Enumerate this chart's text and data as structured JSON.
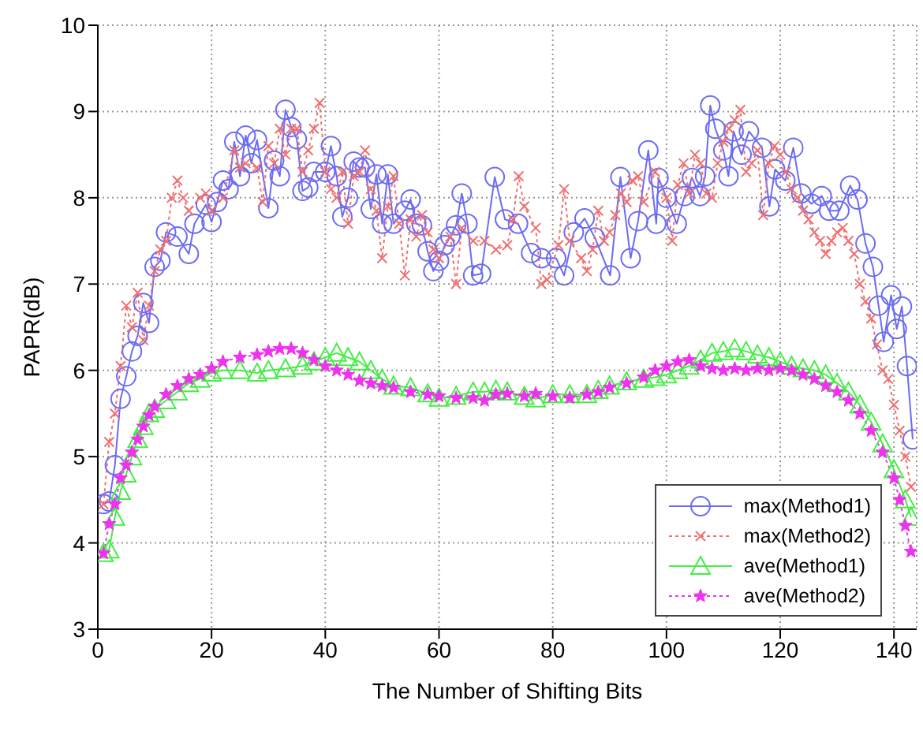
{
  "chart_data": {
    "type": "line",
    "xlabel": "The Number of Shifting Bits",
    "ylabel": "PAPR(dB)",
    "xlim": [
      0,
      144
    ],
    "xticks": [
      0,
      20,
      40,
      60,
      80,
      100,
      120,
      140
    ],
    "ylim": [
      3,
      10
    ],
    "yticks": [
      3,
      4,
      5,
      6,
      7,
      8,
      9,
      10
    ],
    "grid": true,
    "legend": "bottom right",
    "series": [
      {
        "name": "max(Method1)",
        "color": "#6b6bf5",
        "marker": "circle",
        "line_style": "solid",
        "x": [
          1,
          2,
          3,
          4,
          5,
          6,
          7,
          8,
          9,
          10,
          11,
          12,
          14,
          16,
          17,
          19,
          20,
          21,
          22,
          23,
          24,
          25,
          26,
          27,
          28,
          30,
          31,
          32,
          33,
          34,
          35,
          36,
          37,
          38,
          40,
          41,
          42,
          43,
          44,
          45,
          46,
          47,
          48,
          49,
          50,
          51,
          52,
          54,
          55,
          56,
          57,
          58,
          59,
          60,
          61,
          62,
          63,
          64,
          65,
          66,
          67.4,
          69.8,
          71.6,
          73.9,
          76.2,
          78,
          80.6,
          82,
          83.7,
          85.6,
          87.4,
          90.1,
          91.9,
          93.7,
          95,
          96.8,
          98.2,
          98.6,
          100,
          101.8,
          103.2,
          104.5,
          105.9,
          106.8,
          107.7,
          108.6,
          110,
          110.9,
          111.8,
          113.2,
          114.5,
          116.8,
          118.1,
          119.1,
          120.9,
          122.3,
          123.7,
          125.5,
          127.3,
          128.6,
          130.4,
          132.3,
          133.6,
          135,
          136.3,
          137.3,
          138.2,
          139.5,
          140.5,
          141.4,
          142.3,
          143.3
        ],
        "values": [
          4.45,
          4.48,
          4.9,
          5.67,
          5.93,
          6.22,
          6.4,
          6.78,
          6.55,
          7.2,
          7.27,
          7.6,
          7.55,
          7.35,
          7.7,
          7.92,
          7.72,
          7.95,
          8.2,
          8.1,
          8.65,
          8.25,
          8.72,
          8.4,
          8.67,
          7.88,
          8.43,
          8.25,
          9.02,
          8.82,
          8.68,
          8.08,
          8.12,
          8.3,
          8.3,
          8.6,
          8.25,
          7.78,
          8.0,
          8.42,
          8.35,
          8.35,
          7.87,
          8.27,
          7.7,
          8.27,
          7.7,
          7.85,
          7.98,
          7.7,
          7.68,
          7.38,
          7.15,
          7.27,
          7.45,
          7.55,
          7.68,
          8.05,
          7.7,
          7.1,
          7.12,
          8.24,
          7.75,
          7.7,
          7.36,
          7.3,
          7.3,
          7.1,
          7.6,
          7.76,
          7.54,
          7.1,
          8.24,
          7.3,
          7.73,
          8.55,
          7.7,
          8.23,
          8.0,
          7.7,
          8.02,
          8.23,
          8.02,
          8.25,
          9.07,
          8.8,
          8.55,
          8.25,
          8.77,
          8.5,
          8.77,
          8.58,
          7.9,
          8.33,
          8.2,
          8.58,
          8.05,
          7.93,
          8.02,
          7.85,
          7.85,
          8.14,
          7.98,
          7.47,
          7.2,
          6.75,
          6.33,
          6.87,
          6.48,
          6.74,
          6.05,
          5.2
        ]
      },
      {
        "name": "max(Method2)",
        "color": "#f07070",
        "marker": "cross",
        "line_style": "dotted",
        "x": [
          1,
          2,
          3,
          4,
          5,
          6,
          7,
          8,
          9,
          10,
          11,
          12,
          13,
          14,
          15,
          16,
          18,
          19,
          20,
          22,
          24,
          25,
          26,
          28,
          29,
          30,
          31,
          32,
          33,
          34,
          35,
          36,
          37,
          38,
          39,
          40,
          41,
          42,
          43,
          44,
          45,
          46,
          47,
          48,
          49,
          50,
          51,
          52,
          53,
          54,
          55,
          56,
          57,
          58,
          59,
          60,
          62,
          63,
          64,
          66,
          68,
          70,
          72,
          73,
          74,
          75,
          77,
          78,
          79,
          81,
          82,
          83,
          85,
          86,
          87,
          88,
          89,
          90,
          91,
          92,
          93,
          94,
          95,
          96,
          98,
          100,
          101,
          102,
          103,
          104,
          105,
          106,
          107,
          108,
          109,
          110,
          111,
          112,
          113,
          114,
          115,
          116,
          117,
          118,
          119,
          120,
          121,
          122,
          123,
          124,
          125,
          126,
          127,
          128,
          129,
          130,
          131,
          132,
          133,
          134,
          135,
          136,
          137,
          138,
          139,
          140,
          141,
          142,
          143
        ],
        "values": [
          4.45,
          5.17,
          5.5,
          6.05,
          6.75,
          6.5,
          6.9,
          6.35,
          6.75,
          7.15,
          7.4,
          7.5,
          8.0,
          8.2,
          8.0,
          7.85,
          8.0,
          8.05,
          7.85,
          8.0,
          8.55,
          8.35,
          8.4,
          8.35,
          7.95,
          8.6,
          8.4,
          8.8,
          8.5,
          8.8,
          8.8,
          8.3,
          8.55,
          8.8,
          9.1,
          8.3,
          8.1,
          8.0,
          8.3,
          7.7,
          8.25,
          8.3,
          8.55,
          8.1,
          7.85,
          7.3,
          7.9,
          8.25,
          7.7,
          7.1,
          7.75,
          7.55,
          7.8,
          7.6,
          7.4,
          7.3,
          7.55,
          7.0,
          7.65,
          7.5,
          7.5,
          7.4,
          7.45,
          7.75,
          8.25,
          7.9,
          7.65,
          7.0,
          7.05,
          7.45,
          8.1,
          7.5,
          7.3,
          7.15,
          7.4,
          7.85,
          7.5,
          7.6,
          7.8,
          8.05,
          7.95,
          8.2,
          8.25,
          7.95,
          8.3,
          8.0,
          7.5,
          8.15,
          8.4,
          8.05,
          8.5,
          8.4,
          8.05,
          8.0,
          8.4,
          8.65,
          8.8,
          8.9,
          9.02,
          8.3,
          8.4,
          8.55,
          7.8,
          8.4,
          8.6,
          8.5,
          8.3,
          8.1,
          8.0,
          7.85,
          7.75,
          7.6,
          7.5,
          7.35,
          7.5,
          7.6,
          7.65,
          7.5,
          7.35,
          7.0,
          6.8,
          6.6,
          6.3,
          6.0,
          5.9,
          5.6,
          5.3,
          5.0,
          4.65
        ]
      },
      {
        "name": "ave(Method1)",
        "color": "#44ee44",
        "marker": "triangle",
        "line_style": "solid",
        "x": [
          1,
          2,
          3,
          4,
          5,
          6,
          7,
          8,
          9,
          10,
          12,
          14,
          16,
          18,
          20,
          22,
          25,
          28,
          30,
          33,
          36,
          38,
          40,
          42,
          44,
          46,
          48,
          50,
          52,
          55,
          58,
          60,
          63,
          66,
          68,
          70,
          72,
          75,
          77,
          80,
          83,
          86,
          88,
          90,
          93,
          96,
          98,
          100,
          102,
          104,
          106,
          108,
          110,
          112,
          114,
          116,
          118,
          120,
          122,
          124,
          126,
          128,
          130,
          132,
          134,
          136,
          138,
          140,
          142,
          143
        ],
        "values": [
          3.88,
          3.92,
          4.3,
          4.6,
          4.8,
          5.0,
          5.2,
          5.35,
          5.5,
          5.55,
          5.65,
          5.75,
          5.85,
          5.9,
          5.97,
          6.0,
          6.0,
          5.97,
          6.0,
          6.02,
          6.05,
          6.1,
          6.15,
          6.2,
          6.15,
          6.1,
          6.0,
          5.9,
          5.82,
          5.8,
          5.73,
          5.68,
          5.7,
          5.75,
          5.75,
          5.77,
          5.75,
          5.7,
          5.67,
          5.72,
          5.72,
          5.72,
          5.77,
          5.82,
          5.87,
          5.9,
          5.92,
          5.95,
          6.0,
          6.05,
          6.12,
          6.2,
          6.22,
          6.25,
          6.22,
          6.18,
          6.15,
          6.1,
          6.05,
          6.02,
          6.0,
          5.95,
          5.85,
          5.75,
          5.6,
          5.4,
          5.15,
          4.85,
          4.5,
          4.3
        ]
      },
      {
        "name": "ave(Method2)",
        "color": "#ee33ee",
        "marker": "star",
        "line_style": "dotted",
        "x": [
          1,
          2,
          3,
          4,
          5,
          6,
          7,
          8,
          9,
          10,
          12,
          14,
          16,
          18,
          20,
          22,
          25,
          28,
          30,
          32,
          34,
          36,
          38,
          40,
          42,
          44,
          46,
          48,
          50,
          52,
          55,
          58,
          60,
          63,
          66,
          68,
          70,
          72,
          75,
          77,
          80,
          83,
          86,
          88,
          90,
          93,
          96,
          98,
          100,
          102,
          104,
          106,
          108,
          110,
          112,
          114,
          116,
          118,
          120,
          122,
          124,
          126,
          128,
          130,
          132,
          134,
          136,
          138,
          140,
          141,
          142,
          143
        ],
        "values": [
          3.88,
          4.22,
          4.45,
          4.75,
          4.9,
          5.05,
          5.2,
          5.35,
          5.48,
          5.58,
          5.72,
          5.82,
          5.9,
          5.95,
          6.02,
          6.1,
          6.15,
          6.18,
          6.22,
          6.25,
          6.25,
          6.2,
          6.12,
          6.05,
          6.0,
          5.95,
          5.88,
          5.85,
          5.82,
          5.8,
          5.75,
          5.72,
          5.7,
          5.68,
          5.68,
          5.65,
          5.72,
          5.73,
          5.7,
          5.73,
          5.7,
          5.68,
          5.72,
          5.75,
          5.8,
          5.85,
          5.92,
          6.0,
          6.05,
          6.1,
          6.12,
          6.05,
          6.02,
          6.0,
          6.02,
          6.0,
          6.02,
          6.0,
          6.02,
          6.0,
          5.95,
          5.9,
          5.82,
          5.75,
          5.65,
          5.5,
          5.3,
          5.05,
          4.75,
          4.5,
          4.2,
          3.9
        ]
      }
    ]
  }
}
